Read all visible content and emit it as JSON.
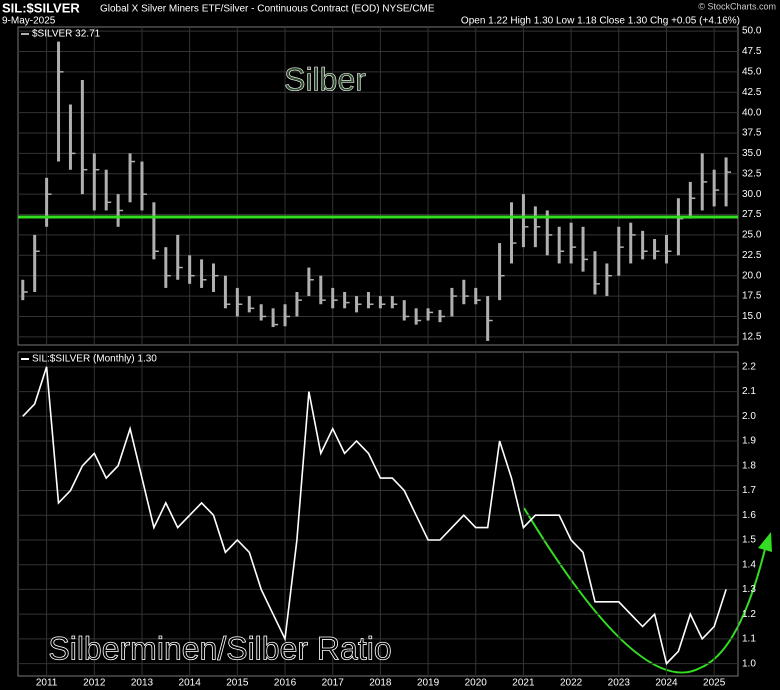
{
  "chart_data": [
    {
      "type": "ohlc",
      "title": "SIL:$SILVER",
      "subtitle": "Global X Silver Miners ETF/Silver - Continuous Contract (EOD) NYSE/CME",
      "source": "© StockCharts.com",
      "date": "9-May-2025",
      "quote": "Open 1.22 High 1.30 Low 1.18 Close 1.30 Chg +0.05 (+4.16%)",
      "legend": "$SILVER 32.71",
      "annotation": "Silber",
      "color": "#b0b0b0",
      "hline": {
        "value": 27.2,
        "color": "#33dd22"
      },
      "x": [
        2010.5,
        2010.75,
        2011,
        2011.25,
        2011.5,
        2011.75,
        2012,
        2012.25,
        2012.5,
        2012.75,
        2013,
        2013.25,
        2013.5,
        2013.75,
        2014,
        2014.25,
        2014.5,
        2014.75,
        2015,
        2015.25,
        2015.5,
        2015.75,
        2016,
        2016.25,
        2016.5,
        2016.75,
        2017,
        2017.25,
        2017.5,
        2017.75,
        2018,
        2018.25,
        2018.5,
        2018.75,
        2019,
        2019.25,
        2019.5,
        2019.75,
        2020,
        2020.25,
        2020.5,
        2020.75,
        2021,
        2021.25,
        2021.5,
        2021.75,
        2022,
        2022.25,
        2022.5,
        2022.75,
        2023,
        2023.25,
        2023.5,
        2023.75,
        2024,
        2024.25,
        2024.5,
        2024.75,
        2025,
        2025.25
      ],
      "high": [
        19.5,
        25,
        32,
        48.7,
        41,
        44,
        35,
        33,
        30,
        35,
        34,
        29,
        23.5,
        25,
        22.5,
        22,
        21.5,
        20,
        18.5,
        17.5,
        16.5,
        16,
        16.5,
        18,
        21,
        20,
        18.5,
        18,
        17.5,
        18,
        17.5,
        17.5,
        17,
        16,
        16,
        15.8,
        18.5,
        19.5,
        18.5,
        17.5,
        24,
        29,
        30,
        28.5,
        28,
        26,
        26.5,
        26,
        23,
        21.5,
        26,
        26.5,
        25.5,
        24.5,
        25,
        29.5,
        31.5,
        35,
        33,
        34.5
      ],
      "low": [
        17,
        18,
        26,
        34,
        33,
        30,
        28,
        28,
        26,
        29,
        28,
        22,
        18.5,
        19.5,
        19,
        18.5,
        18,
        16,
        15,
        15.5,
        14.5,
        13.7,
        13.8,
        15,
        17.5,
        16.5,
        16,
        16,
        15.5,
        16,
        16,
        16,
        14.5,
        14,
        14.5,
        14.3,
        15,
        16.5,
        16.5,
        12,
        17,
        21.5,
        23.5,
        23.5,
        22.5,
        21.5,
        21.5,
        20.5,
        17.7,
        17.5,
        20,
        21.5,
        22,
        22,
        21.5,
        22.5,
        27,
        28,
        28.5,
        28.5
      ],
      "close": [
        18,
        23,
        30,
        45,
        35,
        33,
        33,
        29,
        28,
        34,
        30,
        23,
        20,
        21,
        20,
        19.5,
        20,
        16.5,
        16.5,
        16,
        15,
        14,
        15,
        17,
        19.5,
        17,
        17,
        16.7,
        16.5,
        16.5,
        16.5,
        16.5,
        15,
        14.5,
        15.5,
        15,
        17.5,
        17.5,
        17,
        14.5,
        20,
        24,
        26,
        26,
        25,
        23,
        23.5,
        22,
        19,
        20,
        23.5,
        25,
        23,
        23,
        23,
        27,
        29.5,
        31.5,
        30.5,
        32.7
      ],
      "xlim": [
        2010.4,
        2025.5
      ],
      "xticks": [
        2011,
        2012,
        2013,
        2014,
        2015,
        2016,
        2017,
        2018,
        2019,
        2020,
        2021,
        2022,
        2023,
        2024,
        2025
      ],
      "ylim": [
        11.5,
        50.5
      ],
      "yticks": [
        12.5,
        {
          "value": 15,
          "label": "15.0"
        },
        17.5,
        {
          "value": 20,
          "label": "20.0"
        },
        22.5,
        {
          "value": 25,
          "label": "25.0"
        },
        27.5,
        {
          "value": 30,
          "label": "30.0"
        },
        32.5,
        {
          "value": 35,
          "label": "35.0"
        },
        37.5,
        {
          "value": 40,
          "label": "40.0"
        },
        42.5,
        {
          "value": 45,
          "label": "45.0"
        },
        47.5,
        {
          "value": 50,
          "label": "50.0"
        }
      ]
    },
    {
      "type": "line",
      "legend": "SIL:$SILVER (Monthly) 1.30",
      "annotation": "Silberminen/Silber Ratio",
      "color": "#ffffff",
      "x": [
        2010.5,
        2010.75,
        2011,
        2011.25,
        2011.5,
        2011.75,
        2012,
        2012.25,
        2012.5,
        2012.75,
        2013,
        2013.25,
        2013.5,
        2013.75,
        2014,
        2014.25,
        2014.5,
        2014.75,
        2015,
        2015.25,
        2015.5,
        2015.75,
        2016,
        2016.25,
        2016.5,
        2016.75,
        2017,
        2017.25,
        2017.5,
        2017.75,
        2018,
        2018.25,
        2018.5,
        2018.75,
        2019,
        2019.25,
        2019.5,
        2019.75,
        2020,
        2020.25,
        2020.5,
        2020.75,
        2021,
        2021.25,
        2021.5,
        2021.75,
        2022,
        2022.25,
        2022.5,
        2022.75,
        2023,
        2023.25,
        2023.5,
        2023.75,
        2024,
        2024.25,
        2024.5,
        2024.75,
        2025,
        2025.25
      ],
      "values": [
        2.0,
        2.05,
        2.2,
        1.65,
        1.7,
        1.8,
        1.85,
        1.75,
        1.8,
        1.95,
        1.75,
        1.55,
        1.65,
        1.55,
        1.6,
        1.65,
        1.6,
        1.45,
        1.5,
        1.45,
        1.3,
        1.2,
        1.1,
        1.5,
        2.1,
        1.85,
        1.95,
        1.85,
        1.9,
        1.85,
        1.75,
        1.75,
        1.7,
        1.6,
        1.5,
        1.5,
        1.55,
        1.6,
        1.55,
        1.55,
        1.9,
        1.75,
        1.55,
        1.6,
        1.6,
        1.6,
        1.5,
        1.45,
        1.25,
        1.25,
        1.25,
        1.2,
        1.15,
        1.2,
        1.0,
        1.05,
        1.2,
        1.1,
        1.15,
        1.3
      ],
      "xlim": [
        2010.4,
        2025.5
      ],
      "xticks": [
        2011,
        2012,
        2013,
        2014,
        2015,
        2016,
        2017,
        2018,
        2019,
        2020,
        2021,
        2022,
        2023,
        2024,
        2025
      ],
      "ylim": [
        0.95,
        2.26
      ],
      "yticks": [
        {
          "value": 1,
          "label": "1.0"
        },
        1.1,
        1.2,
        1.3,
        1.4,
        1.5,
        1.6,
        1.7,
        1.8,
        1.9,
        {
          "value": 2,
          "label": "2.0"
        },
        2.1,
        2.2
      ]
    }
  ]
}
